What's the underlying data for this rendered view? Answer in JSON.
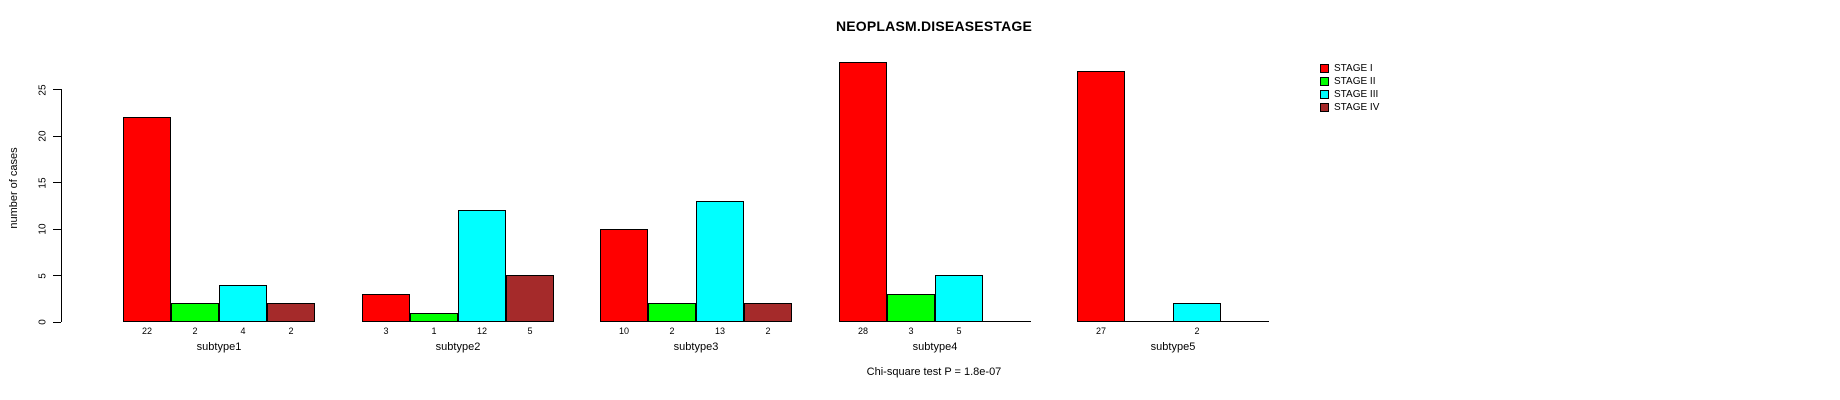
{
  "chart_data": {
    "type": "bar",
    "title": "NEOPLASM.DISEASESTAGE",
    "ylabel": "number of cases",
    "annotation": "Chi-square test P = 1.8e-07",
    "categories": [
      "subtype1",
      "subtype2",
      "subtype3",
      "subtype4",
      "subtype5"
    ],
    "series": [
      {
        "name": "STAGE I",
        "color": "#FF0000",
        "values": [
          22,
          3,
          10,
          28,
          27
        ]
      },
      {
        "name": "STAGE II",
        "color": "#00FF00",
        "values": [
          2,
          1,
          2,
          3,
          0
        ]
      },
      {
        "name": "STAGE III",
        "color": "#00FFFF",
        "values": [
          4,
          12,
          13,
          5,
          2
        ]
      },
      {
        "name": "STAGE IV",
        "color": "#A52A2A",
        "values": [
          2,
          5,
          2,
          0,
          0
        ]
      }
    ],
    "yticks": [
      0,
      5,
      10,
      15,
      20,
      25
    ],
    "ylim": [
      0,
      25
    ],
    "show_value_labels_for_nonzero_bars": true,
    "legend_position": "right",
    "grid": false,
    "background_color": "#FFFFFF"
  }
}
